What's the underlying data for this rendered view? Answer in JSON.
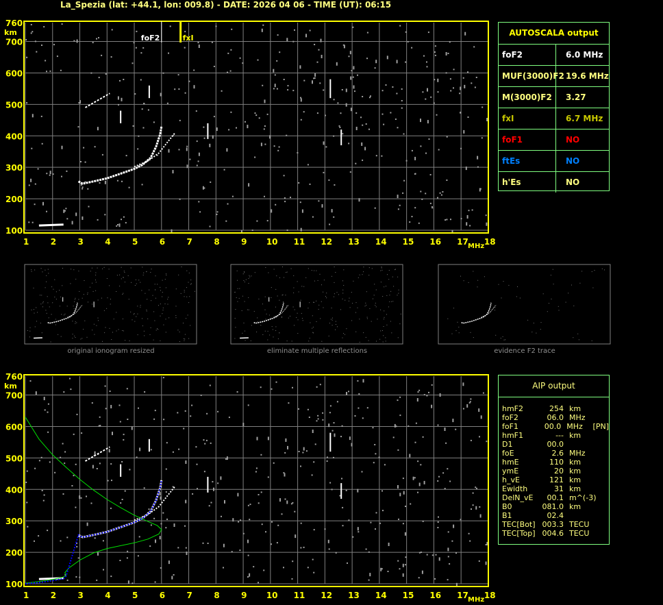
{
  "header": {
    "title": "La_Spezia (lat: +44.1, lon: 009.8) - DATE: 2026 04 06 - TIME (UT): 06:15"
  },
  "colors": {
    "axis": "#ffff00",
    "grid": "#808080",
    "trace": "#ffffff",
    "noise": "#a0a0a0",
    "fit": "#0000ff",
    "profile": "#00e000",
    "table_border": "#80ff80"
  },
  "autoscala": {
    "title": "AUTOSCALA output",
    "rows": [
      {
        "label": "foF2",
        "value": "6.0 MHz",
        "color": "#ffffff"
      },
      {
        "label": "MUF(3000)F2",
        "value": "19.6 MHz",
        "color": "#ffff80"
      },
      {
        "label": "M(3000)F2",
        "value": "3.27",
        "color": "#ffff80"
      },
      {
        "label": "fxI",
        "value": "6.7 MHz",
        "color": "#c8c800"
      },
      {
        "label": "foF1",
        "value": "NO",
        "color": "#ff0000"
      },
      {
        "label": "ftEs",
        "value": "NO",
        "color": "#0080ff"
      },
      {
        "label": "h'Es",
        "value": "NO",
        "color": "#ffff80"
      }
    ]
  },
  "aip": {
    "title": "AIP output",
    "rows": [
      [
        "hmF2",
        "254",
        "km",
        ""
      ],
      [
        "foF2",
        "06.0",
        "MHz",
        ""
      ],
      [
        "foF1",
        "00.0",
        "MHz",
        "[PN]"
      ],
      [
        "hmF1",
        "---",
        "km",
        ""
      ],
      [
        "D1",
        "00.0",
        "",
        ""
      ],
      [
        "foE",
        "2.6",
        "MHz",
        ""
      ],
      [
        "hmE",
        "110",
        "km",
        ""
      ],
      [
        "ymE",
        "20",
        "km",
        ""
      ],
      [
        "h_vE",
        "121",
        "km",
        ""
      ],
      [
        "Ewidth",
        "31",
        "km",
        ""
      ],
      [
        "DelN_vE",
        "00.1",
        "m^(-3)",
        ""
      ],
      [
        "B0",
        "081.0",
        "km",
        ""
      ],
      [
        "B1",
        "02.4",
        "",
        ""
      ],
      [
        "TEC[Bot]",
        "003.3",
        "TECU",
        ""
      ],
      [
        "TEC[Top]",
        "004.6",
        "TECU",
        ""
      ]
    ]
  },
  "thumbnails": [
    {
      "caption": "original ionogram resized"
    },
    {
      "caption": "eliminate multiple reflections"
    },
    {
      "caption": "evidence F2 trace"
    }
  ],
  "chart_data": [
    {
      "type": "scatter",
      "title": "",
      "xlabel": "MHz",
      "ylabel": "km",
      "xlim": [
        1,
        18
      ],
      "ylim": [
        100,
        760
      ],
      "xticks": [
        "1",
        "2",
        "3",
        "4",
        "5",
        "6",
        "7",
        "8",
        "9",
        "10",
        "11",
        "12",
        "13",
        "14",
        "15",
        "16",
        "17",
        "18"
      ],
      "yticks": [
        "100",
        "200",
        "300",
        "400",
        "500",
        "600",
        "700",
        "760"
      ],
      "grid": true,
      "markers": [
        {
          "label": "foF2",
          "x": 6.0
        },
        {
          "label": "fxI",
          "x": 6.7
        }
      ],
      "traces": {
        "F2_o": [
          [
            2.95,
            255
          ],
          [
            3.1,
            248
          ],
          [
            3.5,
            255
          ],
          [
            4,
            265
          ],
          [
            4.5,
            280
          ],
          [
            5,
            295
          ],
          [
            5.3,
            308
          ],
          [
            5.6,
            330
          ],
          [
            5.8,
            365
          ],
          [
            5.95,
            405
          ],
          [
            6.0,
            430
          ]
        ],
        "F2_x": [
          [
            5.0,
            302
          ],
          [
            5.5,
            320
          ],
          [
            5.9,
            345
          ],
          [
            6.2,
            378
          ],
          [
            6.5,
            410
          ]
        ],
        "F2_2hop": [
          [
            3.2,
            490
          ],
          [
            3.5,
            505
          ],
          [
            3.8,
            520
          ],
          [
            4.1,
            535
          ]
        ],
        "E": [
          [
            1.5,
            115
          ],
          [
            2.4,
            118
          ]
        ]
      }
    },
    {
      "type": "scatter",
      "title": "",
      "xlabel": "MHz",
      "ylabel": "km",
      "xlim": [
        1,
        18
      ],
      "ylim": [
        100,
        760
      ],
      "xticks": [
        "1",
        "2",
        "3",
        "4",
        "5",
        "6",
        "7",
        "8",
        "9",
        "10",
        "11",
        "12",
        "13",
        "14",
        "15",
        "16",
        "17",
        "18"
      ],
      "yticks": [
        "100",
        "200",
        "300",
        "400",
        "500",
        "600",
        "700",
        "760"
      ],
      "grid": true,
      "fitted_trace": [
        [
          1,
          100
        ],
        [
          1.5,
          104
        ],
        [
          2,
          110
        ],
        [
          2.4,
          116
        ],
        [
          2.5,
          125
        ],
        [
          2.95,
          255
        ],
        [
          3.1,
          248
        ],
        [
          3.5,
          255
        ],
        [
          4,
          265
        ],
        [
          4.5,
          280
        ],
        [
          5,
          295
        ],
        [
          5.3,
          308
        ],
        [
          5.6,
          330
        ],
        [
          5.8,
          365
        ],
        [
          5.95,
          405
        ],
        [
          6.0,
          430
        ]
      ],
      "density_profile": [
        [
          1,
          630
        ],
        [
          1.5,
          560
        ],
        [
          2,
          510
        ],
        [
          2.5,
          470
        ],
        [
          3,
          432
        ],
        [
          3.5,
          398
        ],
        [
          4,
          368
        ],
        [
          4.5,
          342
        ],
        [
          5,
          318
        ],
        [
          5.5,
          298
        ],
        [
          5.85,
          285
        ],
        [
          6.0,
          272
        ],
        [
          5.9,
          258
        ],
        [
          5.5,
          242
        ],
        [
          5,
          230
        ],
        [
          4.5,
          221
        ],
        [
          4,
          212
        ],
        [
          3.5,
          198
        ],
        [
          3,
          175
        ],
        [
          2.6,
          150
        ],
        [
          2.45,
          135
        ],
        [
          2.5,
          125
        ],
        [
          2.3,
          119
        ],
        [
          2,
          114
        ],
        [
          1.5,
          107
        ],
        [
          1,
          102
        ]
      ]
    }
  ]
}
